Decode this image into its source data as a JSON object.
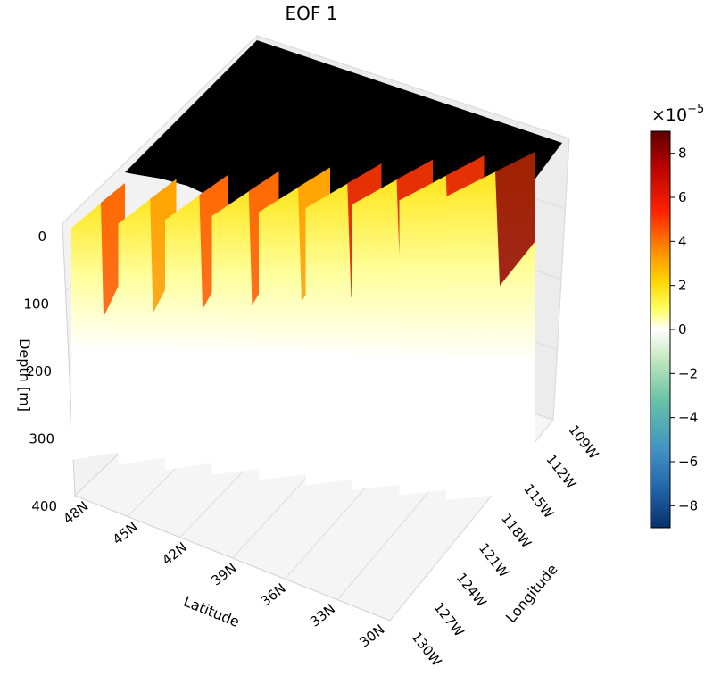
{
  "chart_data": {
    "type": "3d-curtain",
    "title": "EOF 1",
    "xlabel": "Latitude",
    "ylabel": "Longitude",
    "zlabel": "Depth [m]",
    "latitude_ticks": [
      "48N",
      "45N",
      "42N",
      "39N",
      "36N",
      "33N",
      "30N"
    ],
    "longitude_ticks": [
      "109W",
      "112W",
      "115W",
      "118W",
      "121W",
      "124W",
      "127W",
      "130W"
    ],
    "depth_ticks": [
      "0",
      "100",
      "200",
      "300",
      "400"
    ],
    "depth_range": [
      0,
      400
    ],
    "colorbar": {
      "multiplier": "×10",
      "exponent": "−5",
      "ticks": [
        "8",
        "6",
        "4",
        "2",
        "0",
        "−2",
        "−4",
        "−6",
        "−8"
      ],
      "range": [
        -9,
        9
      ],
      "colormap": [
        "#08306b",
        "#2166ac",
        "#4393c3",
        "#66c2a5",
        "#c7e9c0",
        "#ffffff",
        "#ffff66",
        "#ffd700",
        "#ff8c00",
        "#ff2000",
        "#b00000",
        "#5c0000"
      ]
    },
    "grid": true,
    "sections": [
      {
        "lat": 47,
        "max_value": 4.5
      },
      {
        "lat": 44,
        "max_value": 4
      },
      {
        "lat": 41,
        "max_value": 5
      },
      {
        "lat": 38,
        "max_value": 5.5
      },
      {
        "lat": 35.5,
        "max_value": 3
      },
      {
        "lat": 34,
        "max_value": 6
      },
      {
        "lat": 32.5,
        "max_value": 6.5
      },
      {
        "lat": 31,
        "max_value": 7
      },
      {
        "lat": 30,
        "max_value": 9
      }
    ]
  }
}
